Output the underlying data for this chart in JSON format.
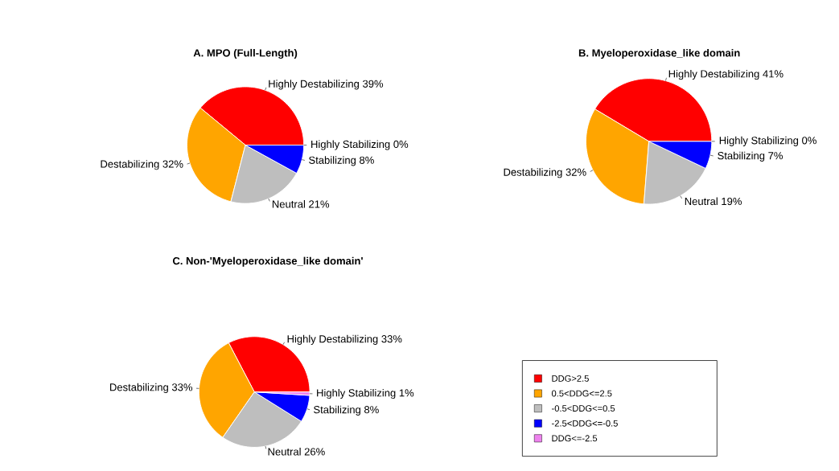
{
  "chart_data": [
    {
      "type": "pie",
      "title": "A. MPO (Full-Length)",
      "categories": [
        "Highly Destabilizing",
        "Destabilizing",
        "Neutral",
        "Stabilizing",
        "Highly Stabilizing"
      ],
      "values": [
        39,
        32,
        21,
        8,
        0
      ],
      "value_labels": [
        "39%",
        "32%",
        "21%",
        "8%",
        "0%"
      ],
      "colors": [
        "#ff0000",
        "#ffa500",
        "#bebebe",
        "#0000ff",
        "#ee82ee"
      ]
    },
    {
      "type": "pie",
      "title": "B. Myeloperoxidase_like domain",
      "categories": [
        "Highly Destabilizing",
        "Destabilizing",
        "Neutral",
        "Stabilizing",
        "Highly Stabilizing"
      ],
      "values": [
        41,
        32,
        19,
        7,
        0
      ],
      "value_labels": [
        "41%",
        "32%",
        "19%",
        "7%",
        "0%"
      ],
      "colors": [
        "#ff0000",
        "#ffa500",
        "#bebebe",
        "#0000ff",
        "#ee82ee"
      ]
    },
    {
      "type": "pie",
      "title": "C. Non-'Myeloperoxidase_like domain'",
      "categories": [
        "Highly Destabilizing",
        "Destabilizing",
        "Neutral",
        "Stabilizing",
        "Highly Stabilizing"
      ],
      "values": [
        33,
        33,
        26,
        8,
        1
      ],
      "value_labels": [
        "33%",
        "33%",
        "26%",
        "8%",
        "1%"
      ],
      "colors": [
        "#ff0000",
        "#ffa500",
        "#bebebe",
        "#0000ff",
        "#ee82ee"
      ]
    },
    {
      "type": "other",
      "categories": [
        "DDG>2.5",
        "0.5<DDG<=2.5",
        "-0.5<DDG<=0.5",
        "-2.5<DDG<=-0.5",
        "DDG<=-2.5"
      ],
      "colors": [
        "#ff0000",
        "#ffa500",
        "#bebebe",
        "#0000ff",
        "#ee82ee"
      ]
    }
  ]
}
